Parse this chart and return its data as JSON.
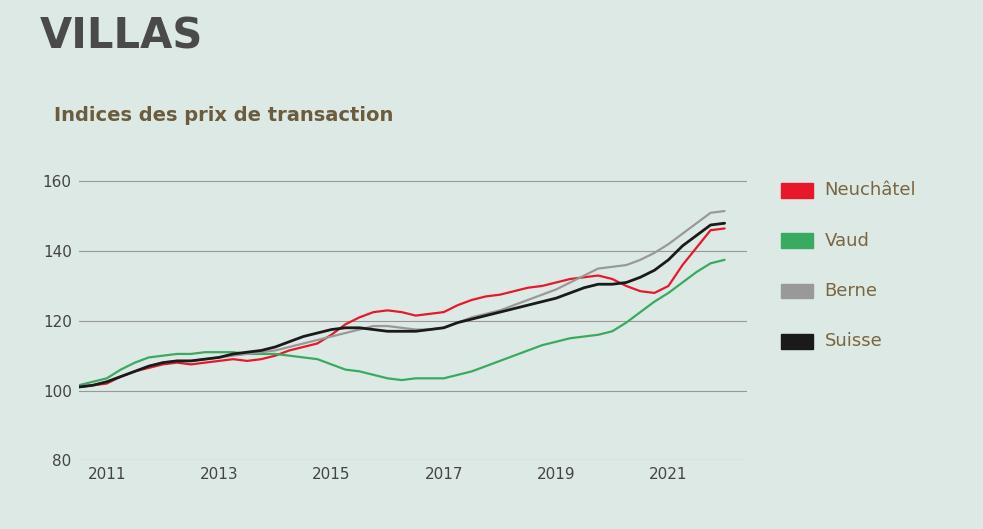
{
  "title": "VILLAS",
  "subtitle": "Indices des prix de transaction",
  "background_color": "#dde9e5",
  "plot_bg_color": "#dde9e5",
  "ylim": [
    80,
    165
  ],
  "yticks": [
    80,
    100,
    120,
    140,
    160
  ],
  "grid_yticks": [
    100,
    120,
    140,
    160
  ],
  "xlim": [
    2010.5,
    2022.4
  ],
  "xticks": [
    2011,
    2013,
    2015,
    2017,
    2019,
    2021
  ],
  "grid_color": "#999999",
  "title_color": "#4a4a4a",
  "subtitle_color": "#6b5c3e",
  "tick_color": "#444444",
  "legend_text_color": "#7a6640",
  "series": {
    "Neuchâtel": {
      "color": "#e8182c",
      "linewidth": 1.6,
      "data_x": [
        2010.0,
        2010.25,
        2010.5,
        2010.75,
        2011.0,
        2011.25,
        2011.5,
        2011.75,
        2012.0,
        2012.25,
        2012.5,
        2012.75,
        2013.0,
        2013.25,
        2013.5,
        2013.75,
        2014.0,
        2014.25,
        2014.5,
        2014.75,
        2015.0,
        2015.25,
        2015.5,
        2015.75,
        2016.0,
        2016.25,
        2016.5,
        2016.75,
        2017.0,
        2017.25,
        2017.5,
        2017.75,
        2018.0,
        2018.25,
        2018.5,
        2018.75,
        2019.0,
        2019.25,
        2019.5,
        2019.75,
        2020.0,
        2020.25,
        2020.5,
        2020.75,
        2021.0,
        2021.25,
        2021.5,
        2021.75,
        2022.0
      ],
      "data_y": [
        100.0,
        100.5,
        101.0,
        101.5,
        102.0,
        104.0,
        105.5,
        106.5,
        107.5,
        108.0,
        107.5,
        108.0,
        108.5,
        109.0,
        108.5,
        109.0,
        110.0,
        111.5,
        112.5,
        113.5,
        116.0,
        119.0,
        121.0,
        122.5,
        123.0,
        122.5,
        121.5,
        122.0,
        122.5,
        124.5,
        126.0,
        127.0,
        127.5,
        128.5,
        129.5,
        130.0,
        131.0,
        132.0,
        132.5,
        133.0,
        132.0,
        130.0,
        128.5,
        128.0,
        130.0,
        136.0,
        141.0,
        146.0,
        146.5
      ]
    },
    "Vaud": {
      "color": "#3aaa60",
      "linewidth": 1.6,
      "data_x": [
        2010.0,
        2010.25,
        2010.5,
        2010.75,
        2011.0,
        2011.25,
        2011.5,
        2011.75,
        2012.0,
        2012.25,
        2012.5,
        2012.75,
        2013.0,
        2013.25,
        2013.5,
        2013.75,
        2014.0,
        2014.25,
        2014.5,
        2014.75,
        2015.0,
        2015.25,
        2015.5,
        2015.75,
        2016.0,
        2016.25,
        2016.5,
        2016.75,
        2017.0,
        2017.25,
        2017.5,
        2017.75,
        2018.0,
        2018.25,
        2018.5,
        2018.75,
        2019.0,
        2019.25,
        2019.5,
        2019.75,
        2020.0,
        2020.25,
        2020.5,
        2020.75,
        2021.0,
        2021.25,
        2021.5,
        2021.75,
        2022.0
      ],
      "data_y": [
        100.0,
        100.5,
        101.5,
        102.5,
        103.5,
        106.0,
        108.0,
        109.5,
        110.0,
        110.5,
        110.5,
        111.0,
        111.0,
        111.0,
        110.5,
        110.5,
        110.5,
        110.0,
        109.5,
        109.0,
        107.5,
        106.0,
        105.5,
        104.5,
        103.5,
        103.0,
        103.5,
        103.5,
        103.5,
        104.5,
        105.5,
        107.0,
        108.5,
        110.0,
        111.5,
        113.0,
        114.0,
        115.0,
        115.5,
        116.0,
        117.0,
        119.5,
        122.5,
        125.5,
        128.0,
        131.0,
        134.0,
        136.5,
        137.5
      ]
    },
    "Berne": {
      "color": "#999999",
      "linewidth": 1.6,
      "data_x": [
        2010.0,
        2010.25,
        2010.5,
        2010.75,
        2011.0,
        2011.25,
        2011.5,
        2011.75,
        2012.0,
        2012.25,
        2012.5,
        2012.75,
        2013.0,
        2013.25,
        2013.5,
        2013.75,
        2014.0,
        2014.25,
        2014.5,
        2014.75,
        2015.0,
        2015.25,
        2015.5,
        2015.75,
        2016.0,
        2016.25,
        2016.5,
        2016.75,
        2017.0,
        2017.25,
        2017.5,
        2017.75,
        2018.0,
        2018.25,
        2018.5,
        2018.75,
        2019.0,
        2019.25,
        2019.5,
        2019.75,
        2020.0,
        2020.25,
        2020.5,
        2020.75,
        2021.0,
        2021.25,
        2021.5,
        2021.75,
        2022.0
      ],
      "data_y": [
        100.0,
        100.5,
        101.0,
        101.5,
        102.5,
        104.0,
        105.5,
        107.0,
        108.0,
        108.5,
        108.5,
        109.0,
        109.5,
        110.0,
        110.5,
        111.0,
        111.5,
        112.5,
        113.5,
        114.5,
        115.5,
        116.5,
        117.5,
        118.5,
        118.5,
        118.0,
        117.5,
        117.5,
        118.0,
        119.5,
        121.0,
        122.0,
        123.0,
        124.5,
        126.0,
        127.5,
        129.0,
        131.0,
        133.0,
        135.0,
        135.5,
        136.0,
        137.5,
        139.5,
        142.0,
        145.0,
        148.0,
        151.0,
        151.5
      ]
    },
    "Suisse": {
      "color": "#1a1a1a",
      "linewidth": 2.0,
      "data_x": [
        2010.0,
        2010.25,
        2010.5,
        2010.75,
        2011.0,
        2011.25,
        2011.5,
        2011.75,
        2012.0,
        2012.25,
        2012.5,
        2012.75,
        2013.0,
        2013.25,
        2013.5,
        2013.75,
        2014.0,
        2014.25,
        2014.5,
        2014.75,
        2015.0,
        2015.25,
        2015.5,
        2015.75,
        2016.0,
        2016.25,
        2016.5,
        2016.75,
        2017.0,
        2017.25,
        2017.5,
        2017.75,
        2018.0,
        2018.25,
        2018.5,
        2018.75,
        2019.0,
        2019.25,
        2019.5,
        2019.75,
        2020.0,
        2020.25,
        2020.5,
        2020.75,
        2021.0,
        2021.25,
        2021.5,
        2021.75,
        2022.0
      ],
      "data_y": [
        100.0,
        100.5,
        101.0,
        101.5,
        102.5,
        104.0,
        105.5,
        107.0,
        108.0,
        108.5,
        108.5,
        109.0,
        109.5,
        110.5,
        111.0,
        111.5,
        112.5,
        114.0,
        115.5,
        116.5,
        117.5,
        118.0,
        118.0,
        117.5,
        117.0,
        117.0,
        117.0,
        117.5,
        118.0,
        119.5,
        120.5,
        121.5,
        122.5,
        123.5,
        124.5,
        125.5,
        126.5,
        128.0,
        129.5,
        130.5,
        130.5,
        131.0,
        132.5,
        134.5,
        137.5,
        141.5,
        144.5,
        147.5,
        148.0
      ]
    }
  },
  "legend_order": [
    "Neuchâtel",
    "Vaud",
    "Berne",
    "Suisse"
  ],
  "title_fontsize": 30,
  "subtitle_fontsize": 14,
  "tick_fontsize": 11,
  "legend_fontsize": 13
}
